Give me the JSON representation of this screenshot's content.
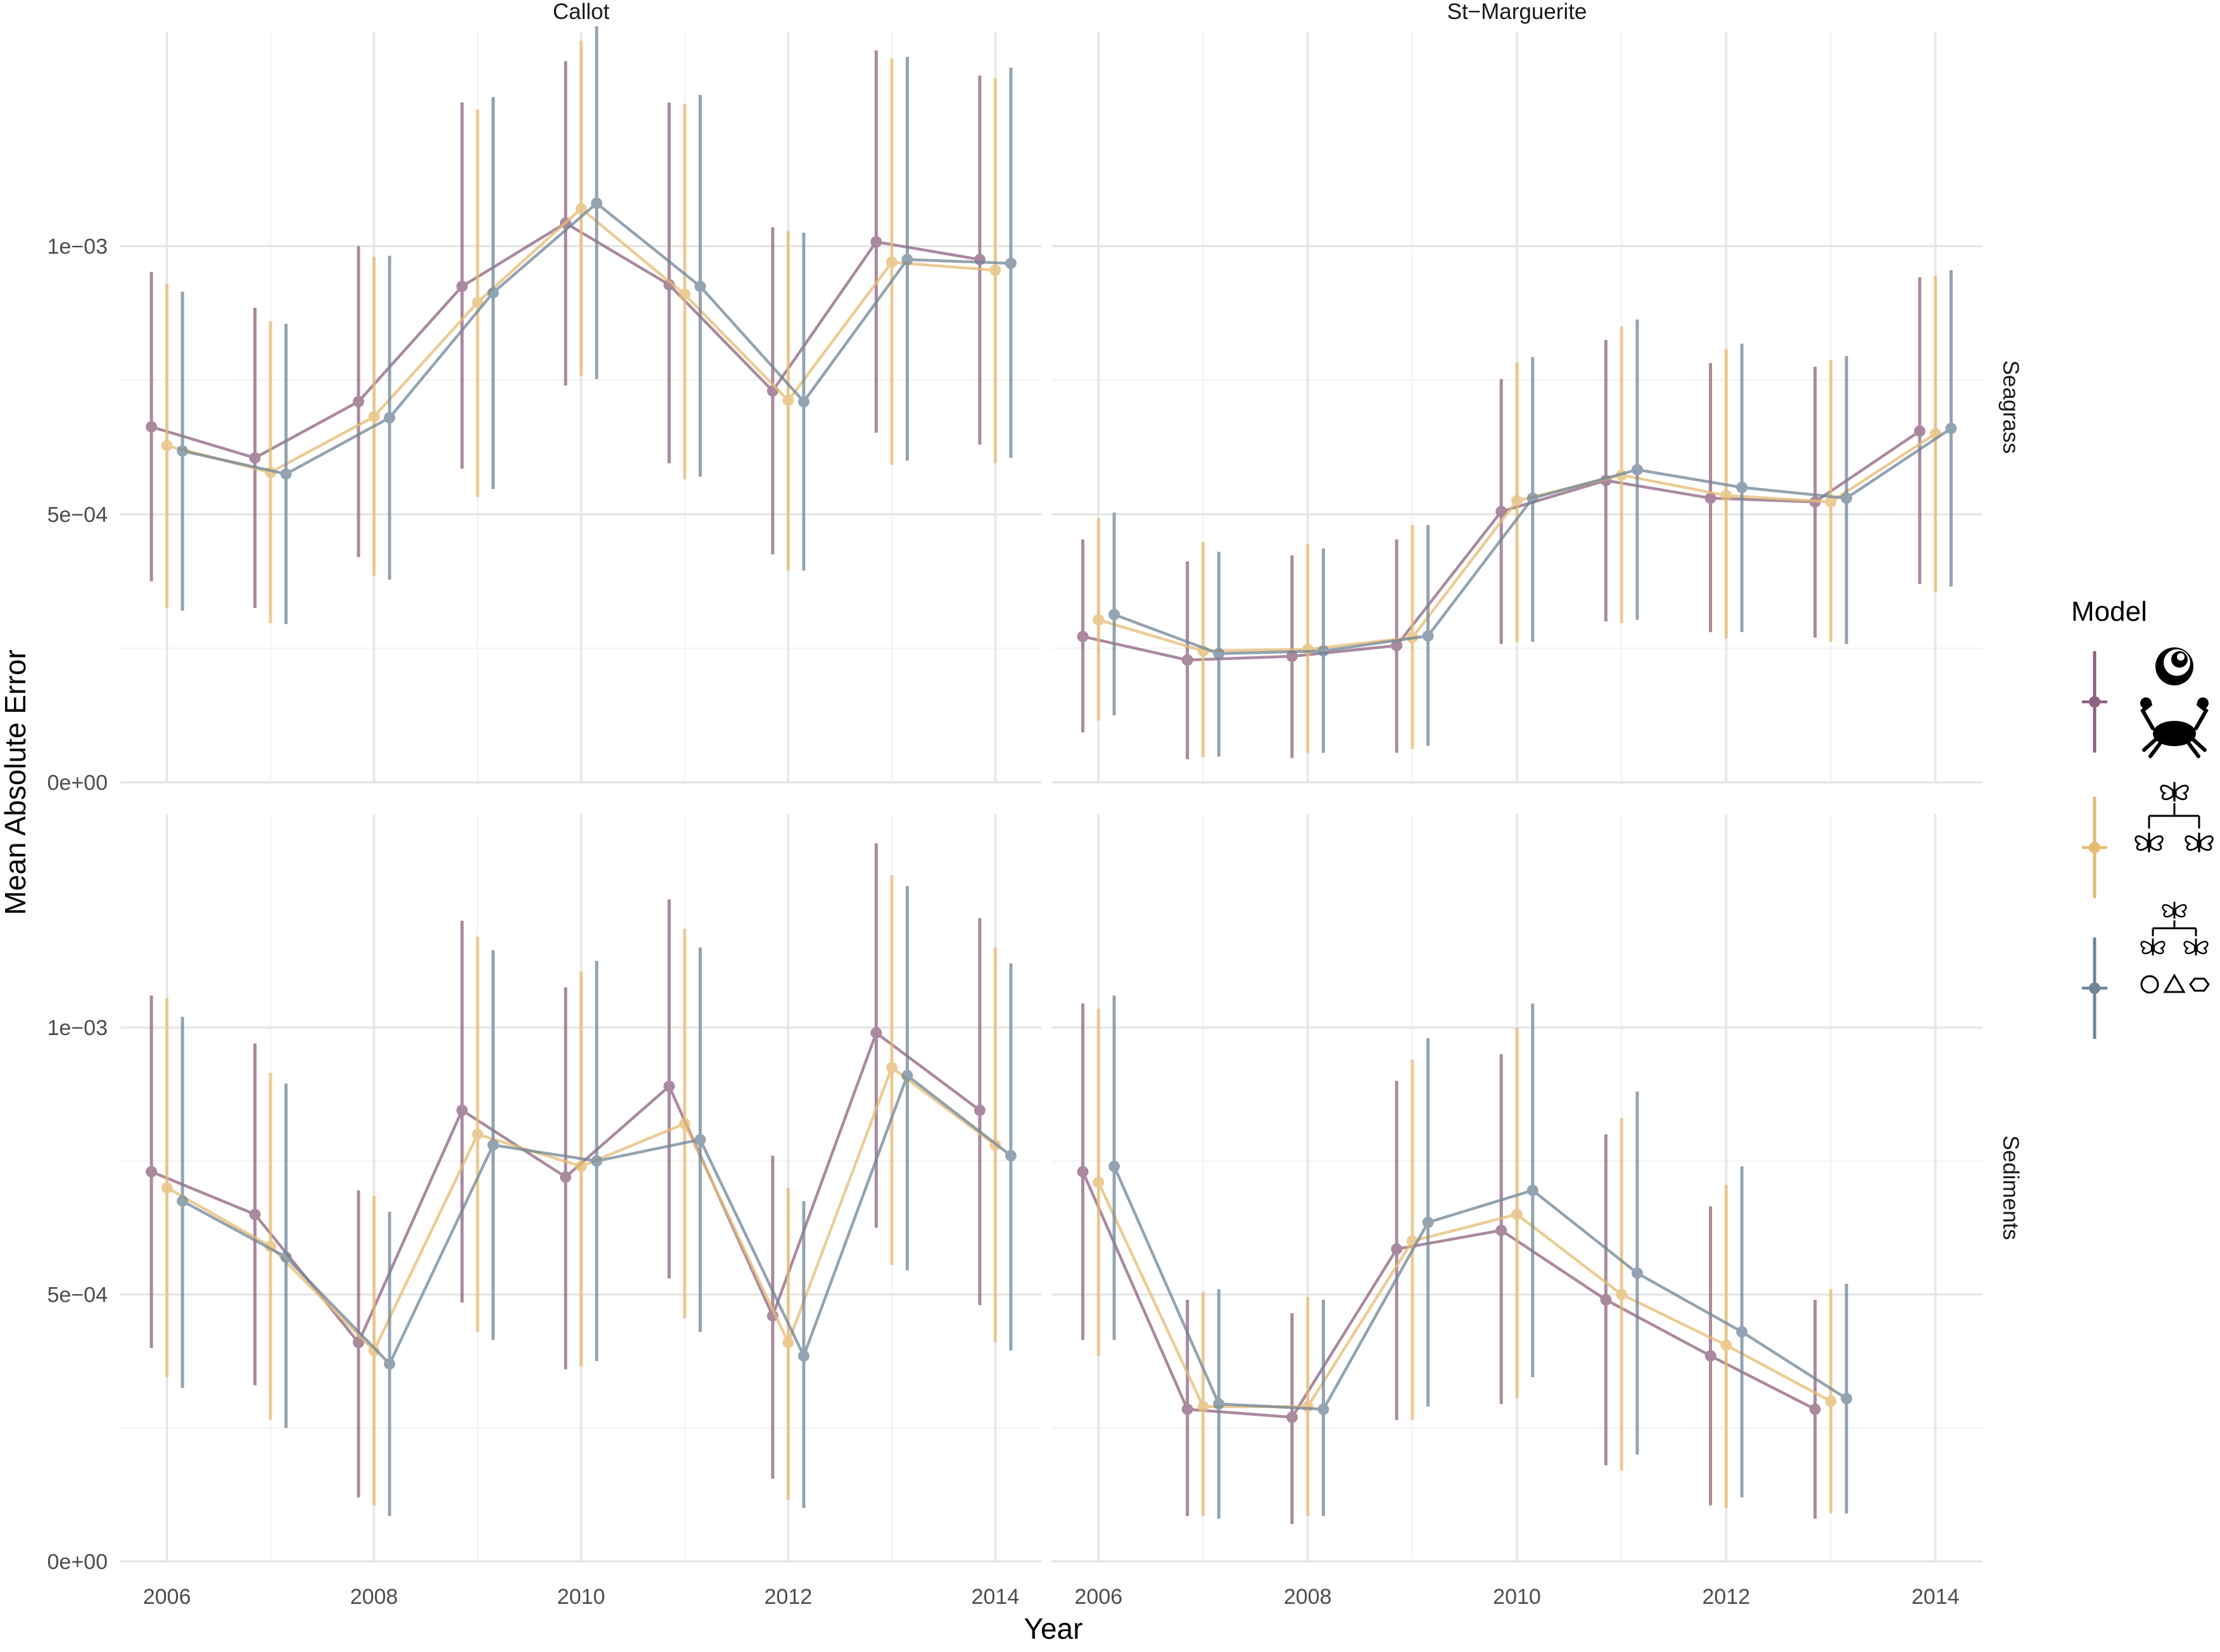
{
  "chart_data": {
    "type": "line",
    "xlabel": "Year",
    "ylabel": "Mean Absolute Error",
    "x_ticks": [
      2006,
      2008,
      2010,
      2012,
      2014
    ],
    "xlim": [
      2005.55,
      2014.45
    ],
    "ylim": [
      0,
      0.0014
    ],
    "y_ticks": [
      {
        "value": 0,
        "label": "0e+00"
      },
      {
        "value": 0.0005,
        "label": "5e−04"
      },
      {
        "value": 0.001,
        "label": "1e−03"
      }
    ],
    "grid": true,
    "columns": [
      "Callot",
      "St−Marguerite"
    ],
    "rows": [
      "Seagrass",
      "Sediments"
    ],
    "legend": {
      "title": "Model",
      "position": "right"
    },
    "series": [
      {
        "key": "m1",
        "color": "#8E6280",
        "offset": -0.15,
        "icon": "ammonite-crab-icon"
      },
      {
        "key": "m2",
        "color": "#E6BC72",
        "offset": 0.0,
        "icon": "butterfly-tree-icon"
      },
      {
        "key": "m3",
        "color": "#6F8598",
        "offset": 0.15,
        "icon": "butterfly-tree-shapes-icon"
      }
    ],
    "panels": [
      {
        "col": 0,
        "row": 0,
        "data": {
          "m1": [
            {
              "x": 2006,
              "y": 0.000663,
              "lo": 0.000375,
              "hi": 0.000952
            },
            {
              "x": 2007,
              "y": 0.000605,
              "lo": 0.000325,
              "hi": 0.000885
            },
            {
              "x": 2008,
              "y": 0.00071,
              "lo": 0.00042,
              "hi": 0.001
            },
            {
              "x": 2009,
              "y": 0.000925,
              "lo": 0.000585,
              "hi": 0.001268
            },
            {
              "x": 2010,
              "y": 0.001043,
              "lo": 0.00074,
              "hi": 0.001345
            },
            {
              "x": 2011,
              "y": 0.000928,
              "lo": 0.000595,
              "hi": 0.001268
            },
            {
              "x": 2012,
              "y": 0.00073,
              "lo": 0.000425,
              "hi": 0.001035
            },
            {
              "x": 2013,
              "y": 0.001008,
              "lo": 0.000652,
              "hi": 0.001365
            },
            {
              "x": 2014,
              "y": 0.000975,
              "lo": 0.00063,
              "hi": 0.001318
            }
          ],
          "m2": [
            {
              "x": 2006,
              "y": 0.000628,
              "lo": 0.000325,
              "hi": 0.00093
            },
            {
              "x": 2007,
              "y": 0.000578,
              "lo": 0.000297,
              "hi": 0.00086
            },
            {
              "x": 2008,
              "y": 0.000682,
              "lo": 0.000385,
              "hi": 0.00098
            },
            {
              "x": 2009,
              "y": 0.000895,
              "lo": 0.000532,
              "hi": 0.001255
            },
            {
              "x": 2010,
              "y": 0.00107,
              "lo": 0.000758,
              "hi": 0.001383
            },
            {
              "x": 2011,
              "y": 0.00091,
              "lo": 0.000565,
              "hi": 0.001265
            },
            {
              "x": 2012,
              "y": 0.000712,
              "lo": 0.000395,
              "hi": 0.001028
            },
            {
              "x": 2013,
              "y": 0.00097,
              "lo": 0.000592,
              "hi": 0.00135
            },
            {
              "x": 2014,
              "y": 0.000955,
              "lo": 0.000595,
              "hi": 0.001313
            }
          ],
          "m3": [
            {
              "x": 2006,
              "y": 0.000618,
              "lo": 0.00032,
              "hi": 0.000915
            },
            {
              "x": 2007,
              "y": 0.000575,
              "lo": 0.000295,
              "hi": 0.000855
            },
            {
              "x": 2008,
              "y": 0.00068,
              "lo": 0.000378,
              "hi": 0.000982
            },
            {
              "x": 2009,
              "y": 0.000913,
              "lo": 0.000547,
              "hi": 0.001278
            },
            {
              "x": 2010,
              "y": 0.00108,
              "lo": 0.000752,
              "hi": 0.00141
            },
            {
              "x": 2011,
              "y": 0.000925,
              "lo": 0.00057,
              "hi": 0.001282
            },
            {
              "x": 2012,
              "y": 0.00071,
              "lo": 0.000395,
              "hi": 0.001025
            },
            {
              "x": 2013,
              "y": 0.000975,
              "lo": 0.0006,
              "hi": 0.001353
            },
            {
              "x": 2014,
              "y": 0.000968,
              "lo": 0.000605,
              "hi": 0.001333
            }
          ]
        }
      },
      {
        "col": 1,
        "row": 0,
        "data": {
          "m1": [
            {
              "x": 2006,
              "y": 0.000272,
              "lo": 9.3e-05,
              "hi": 0.000453
            },
            {
              "x": 2007,
              "y": 0.000228,
              "lo": 4.3e-05,
              "hi": 0.000412
            },
            {
              "x": 2008,
              "y": 0.000235,
              "lo": 4.5e-05,
              "hi": 0.000423
            },
            {
              "x": 2009,
              "y": 0.000255,
              "lo": 5.5e-05,
              "hi": 0.000453
            },
            {
              "x": 2010,
              "y": 0.000505,
              "lo": 0.000258,
              "hi": 0.000752
            },
            {
              "x": 2011,
              "y": 0.000563,
              "lo": 0.0003,
              "hi": 0.000825
            },
            {
              "x": 2012,
              "y": 0.00053,
              "lo": 0.00028,
              "hi": 0.000782
            },
            {
              "x": 2013,
              "y": 0.000523,
              "lo": 0.00027,
              "hi": 0.000775
            },
            {
              "x": 2014,
              "y": 0.000655,
              "lo": 0.00037,
              "hi": 0.000942
            }
          ],
          "m2": [
            {
              "x": 2006,
              "y": 0.000303,
              "lo": 0.000115,
              "hi": 0.000493
            },
            {
              "x": 2007,
              "y": 0.000245,
              "lo": 4.7e-05,
              "hi": 0.000448
            },
            {
              "x": 2008,
              "y": 0.000248,
              "lo": 5.5e-05,
              "hi": 0.000445
            },
            {
              "x": 2009,
              "y": 0.00027,
              "lo": 6.2e-05,
              "hi": 0.00048
            },
            {
              "x": 2010,
              "y": 0.000525,
              "lo": 0.000262,
              "hi": 0.000783
            },
            {
              "x": 2011,
              "y": 0.000573,
              "lo": 0.000297,
              "hi": 0.00085
            },
            {
              "x": 2012,
              "y": 0.000535,
              "lo": 0.000268,
              "hi": 0.000808
            },
            {
              "x": 2013,
              "y": 0.000523,
              "lo": 0.000262,
              "hi": 0.000788
            },
            {
              "x": 2014,
              "y": 0.00065,
              "lo": 0.000355,
              "hi": 0.000945
            }
          ],
          "m3": [
            {
              "x": 2006,
              "y": 0.000313,
              "lo": 0.000125,
              "hi": 0.000503
            },
            {
              "x": 2007,
              "y": 0.00024,
              "lo": 4.8e-05,
              "hi": 0.00043
            },
            {
              "x": 2008,
              "y": 0.000245,
              "lo": 5.5e-05,
              "hi": 0.000436
            },
            {
              "x": 2009,
              "y": 0.000273,
              "lo": 6.8e-05,
              "hi": 0.00048
            },
            {
              "x": 2010,
              "y": 0.00053,
              "lo": 0.000262,
              "hi": 0.000793
            },
            {
              "x": 2011,
              "y": 0.000583,
              "lo": 0.000303,
              "hi": 0.000863
            },
            {
              "x": 2012,
              "y": 0.00055,
              "lo": 0.00028,
              "hi": 0.000818
            },
            {
              "x": 2013,
              "y": 0.00053,
              "lo": 0.000258,
              "hi": 0.000795
            },
            {
              "x": 2014,
              "y": 0.00066,
              "lo": 0.000365,
              "hi": 0.000955
            }
          ]
        }
      },
      {
        "col": 0,
        "row": 1,
        "data": {
          "m1": [
            {
              "x": 2006,
              "y": 0.00073,
              "lo": 0.0004,
              "hi": 0.00106
            },
            {
              "x": 2007,
              "y": 0.00065,
              "lo": 0.00033,
              "hi": 0.00097
            },
            {
              "x": 2008,
              "y": 0.00041,
              "lo": 0.00012,
              "hi": 0.000695
            },
            {
              "x": 2009,
              "y": 0.000845,
              "lo": 0.000485,
              "hi": 0.0012
            },
            {
              "x": 2010,
              "y": 0.00072,
              "lo": 0.00036,
              "hi": 0.001075
            },
            {
              "x": 2011,
              "y": 0.00089,
              "lo": 0.00053,
              "hi": 0.00124
            },
            {
              "x": 2012,
              "y": 0.00046,
              "lo": 0.000155,
              "hi": 0.00076
            },
            {
              "x": 2013,
              "y": 0.00099,
              "lo": 0.000625,
              "hi": 0.001345
            },
            {
              "x": 2014,
              "y": 0.000845,
              "lo": 0.00048,
              "hi": 0.001205
            }
          ],
          "m2": [
            {
              "x": 2006,
              "y": 0.0007,
              "lo": 0.000345,
              "hi": 0.001055
            },
            {
              "x": 2007,
              "y": 0.00059,
              "lo": 0.000265,
              "hi": 0.000915
            },
            {
              "x": 2008,
              "y": 0.000395,
              "lo": 0.000105,
              "hi": 0.000685
            },
            {
              "x": 2009,
              "y": 0.0008,
              "lo": 0.00043,
              "hi": 0.00117
            },
            {
              "x": 2010,
              "y": 0.00074,
              "lo": 0.000365,
              "hi": 0.001105
            },
            {
              "x": 2011,
              "y": 0.00082,
              "lo": 0.000455,
              "hi": 0.001185
            },
            {
              "x": 2012,
              "y": 0.00041,
              "lo": 0.000115,
              "hi": 0.0007
            },
            {
              "x": 2013,
              "y": 0.000925,
              "lo": 0.000555,
              "hi": 0.001285
            },
            {
              "x": 2014,
              "y": 0.00078,
              "lo": 0.00041,
              "hi": 0.00115
            }
          ],
          "m3": [
            {
              "x": 2006,
              "y": 0.000675,
              "lo": 0.000325,
              "hi": 0.00102
            },
            {
              "x": 2007,
              "y": 0.00057,
              "lo": 0.00025,
              "hi": 0.000895
            },
            {
              "x": 2008,
              "y": 0.00037,
              "lo": 8.5e-05,
              "hi": 0.000655
            },
            {
              "x": 2009,
              "y": 0.00078,
              "lo": 0.000415,
              "hi": 0.001145
            },
            {
              "x": 2010,
              "y": 0.00075,
              "lo": 0.000375,
              "hi": 0.001125
            },
            {
              "x": 2011,
              "y": 0.00079,
              "lo": 0.00043,
              "hi": 0.00115
            },
            {
              "x": 2012,
              "y": 0.000385,
              "lo": 0.0001,
              "hi": 0.000675
            },
            {
              "x": 2013,
              "y": 0.00091,
              "lo": 0.000545,
              "hi": 0.001265
            },
            {
              "x": 2014,
              "y": 0.00076,
              "lo": 0.000395,
              "hi": 0.00112
            }
          ]
        }
      },
      {
        "col": 1,
        "row": 1,
        "data": {
          "m1": [
            {
              "x": 2006,
              "y": 0.00073,
              "lo": 0.000415,
              "hi": 0.001045
            },
            {
              "x": 2007,
              "y": 0.000285,
              "lo": 8.5e-05,
              "hi": 0.00049
            },
            {
              "x": 2008,
              "y": 0.00027,
              "lo": 7e-05,
              "hi": 0.000465
            },
            {
              "x": 2009,
              "y": 0.000585,
              "lo": 0.000265,
              "hi": 0.0009
            },
            {
              "x": 2010,
              "y": 0.00062,
              "lo": 0.000295,
              "hi": 0.00095
            },
            {
              "x": 2011,
              "y": 0.00049,
              "lo": 0.00018,
              "hi": 0.0008
            },
            {
              "x": 2012,
              "y": 0.000385,
              "lo": 0.000105,
              "hi": 0.000665
            },
            {
              "x": 2013,
              "y": 0.000285,
              "lo": 8e-05,
              "hi": 0.00049
            }
          ],
          "m2": [
            {
              "x": 2006,
              "y": 0.00071,
              "lo": 0.000385,
              "hi": 0.001035
            },
            {
              "x": 2007,
              "y": 0.00029,
              "lo": 8.5e-05,
              "hi": 0.000505
            },
            {
              "x": 2008,
              "y": 0.00029,
              "lo": 8.5e-05,
              "hi": 0.000495
            },
            {
              "x": 2009,
              "y": 0.0006,
              "lo": 0.000265,
              "hi": 0.00094
            },
            {
              "x": 2010,
              "y": 0.00065,
              "lo": 0.000305,
              "hi": 0.001
            },
            {
              "x": 2011,
              "y": 0.0005,
              "lo": 0.00017,
              "hi": 0.00083
            },
            {
              "x": 2012,
              "y": 0.000405,
              "lo": 0.0001,
              "hi": 0.000705
            },
            {
              "x": 2013,
              "y": 0.0003,
              "lo": 9e-05,
              "hi": 0.00051
            }
          ],
          "m3": [
            {
              "x": 2006,
              "y": 0.00074,
              "lo": 0.000415,
              "hi": 0.00106
            },
            {
              "x": 2007,
              "y": 0.000295,
              "lo": 8e-05,
              "hi": 0.00051
            },
            {
              "x": 2008,
              "y": 0.000285,
              "lo": 8.5e-05,
              "hi": 0.00049
            },
            {
              "x": 2009,
              "y": 0.000635,
              "lo": 0.00029,
              "hi": 0.00098
            },
            {
              "x": 2010,
              "y": 0.000695,
              "lo": 0.000345,
              "hi": 0.001045
            },
            {
              "x": 2011,
              "y": 0.00054,
              "lo": 0.0002,
              "hi": 0.00088
            },
            {
              "x": 2012,
              "y": 0.00043,
              "lo": 0.00012,
              "hi": 0.00074
            },
            {
              "x": 2013,
              "y": 0.000305,
              "lo": 9e-05,
              "hi": 0.00052
            }
          ]
        }
      }
    ]
  }
}
